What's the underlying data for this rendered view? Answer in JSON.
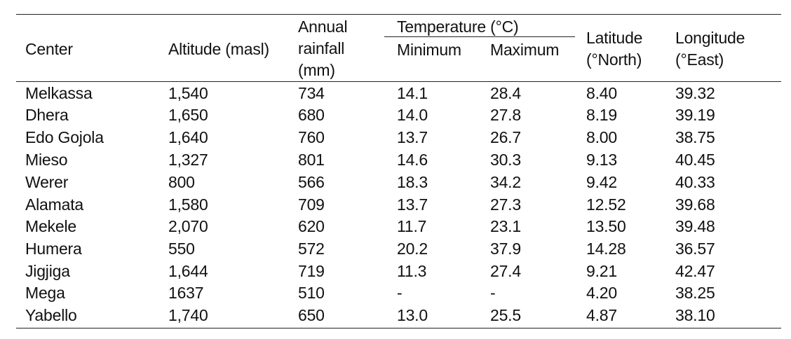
{
  "table": {
    "headers": {
      "center": "Center",
      "altitude": "Altitude (masl)",
      "rainfall": [
        "Annual",
        "rainfall",
        "(mm)"
      ],
      "temperature": "Temperature (°C)",
      "minimum": "Minimum",
      "maximum": "Maximum",
      "latitude": [
        "Latitude",
        "(°North)"
      ],
      "longitude": [
        "Longitude",
        "(°East)"
      ]
    },
    "rows": [
      [
        "Melkassa",
        "1,540",
        "734",
        "14.1",
        "28.4",
        "8.40",
        "39.32"
      ],
      [
        "Dhera",
        "1,650",
        "680",
        "14.0",
        "27.8",
        "8.19",
        "39.19"
      ],
      [
        "Edo Gojola",
        "1,640",
        "760",
        "13.7",
        "26.7",
        "8.00",
        "38.75"
      ],
      [
        "Mieso",
        "1,327",
        "801",
        "14.6",
        "30.3",
        "9.13",
        "40.45"
      ],
      [
        "Werer",
        "800",
        "566",
        "18.3",
        "34.2",
        "9.42",
        "40.33"
      ],
      [
        "Alamata",
        "1,580",
        "709",
        "13.7",
        "27.3",
        "12.52",
        "39.68"
      ],
      [
        "Mekele",
        "2,070",
        "620",
        "11.7",
        "23.1",
        "13.50",
        "39.48"
      ],
      [
        "Humera",
        "550",
        "572",
        "20.2",
        "37.9",
        "14.28",
        "36.57"
      ],
      [
        "Jigjiga",
        "1,644",
        "719",
        "11.3",
        "27.4",
        "9.21",
        "42.47"
      ],
      [
        "Mega",
        "1637",
        "510",
        "-",
        "-",
        "4.20",
        "38.25"
      ],
      [
        "Yabello",
        "1,740",
        "650",
        "13.0",
        "25.5",
        "4.87",
        "38.10"
      ]
    ]
  }
}
